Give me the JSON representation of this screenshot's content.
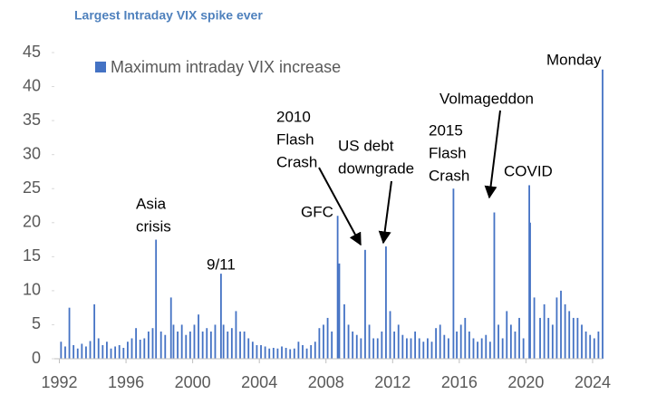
{
  "chart_data": {
    "type": "bar",
    "title": "Largest Intraday VIX spike ever",
    "series": [
      {
        "name": "Maximum intraday VIX increase",
        "color": "#4472c4",
        "values": [
          2.5,
          1.8,
          7.5,
          2,
          1.5,
          2.2,
          1.8,
          2.6,
          8,
          3,
          2,
          2.5,
          1.5,
          1.8,
          2,
          1.6,
          2.5,
          3,
          4.5,
          2.8,
          3,
          4,
          4.5,
          17.5,
          4,
          3.5,
          9,
          5,
          4,
          5,
          3.5,
          4,
          5,
          6.5,
          4,
          4.5,
          4,
          5,
          12.5,
          5,
          4,
          4.5,
          7,
          4,
          4,
          3,
          2.5,
          2,
          2,
          1.8,
          1.5,
          1.6,
          1.5,
          1.8,
          1.6,
          1.4,
          1.5,
          2.5,
          2,
          1.5,
          2,
          2.5,
          4.5,
          5,
          6,
          4,
          21,
          14,
          8,
          5,
          4,
          3.5,
          3,
          16,
          5,
          3,
          3,
          4,
          16.5,
          7,
          4,
          5,
          3.5,
          3,
          3,
          4,
          3,
          2.5,
          3,
          2.5,
          4.5,
          5,
          3.5,
          3,
          25,
          4,
          5,
          6,
          4,
          3,
          2.5,
          3,
          3.5,
          2.5,
          21.5,
          5,
          3,
          7,
          5,
          4,
          6,
          3,
          25.5,
          20,
          9,
          6,
          8,
          6,
          5,
          9,
          10,
          8,
          7,
          6,
          6,
          5,
          4,
          3.5,
          3,
          4,
          42.5
        ]
      }
    ],
    "x": [
      1992.1,
      1992.35,
      1992.6,
      1992.85,
      1993.1,
      1993.35,
      1993.6,
      1993.85,
      1994.1,
      1994.35,
      1994.6,
      1994.85,
      1995.1,
      1995.35,
      1995.6,
      1995.85,
      1996.1,
      1996.35,
      1996.6,
      1996.85,
      1997.1,
      1997.35,
      1997.6,
      1997.8,
      1998.1,
      1998.35,
      1998.7,
      1998.85,
      1999.1,
      1999.35,
      1999.6,
      1999.85,
      2000.1,
      2000.35,
      2000.6,
      2000.85,
      2001.1,
      2001.35,
      2001.7,
      2001.85,
      2002.1,
      2002.35,
      2002.6,
      2002.85,
      2003.1,
      2003.35,
      2003.6,
      2003.85,
      2004.1,
      2004.35,
      2004.6,
      2004.85,
      2005.1,
      2005.35,
      2005.6,
      2005.85,
      2006.1,
      2006.35,
      2006.6,
      2006.85,
      2007.1,
      2007.35,
      2007.6,
      2007.85,
      2008.1,
      2008.35,
      2008.7,
      2008.8,
      2009.1,
      2009.35,
      2009.6,
      2009.85,
      2010.1,
      2010.35,
      2010.6,
      2010.85,
      2011.1,
      2011.35,
      2011.6,
      2011.85,
      2012.1,
      2012.35,
      2012.6,
      2012.85,
      2013.1,
      2013.35,
      2013.6,
      2013.85,
      2014.1,
      2014.35,
      2014.6,
      2014.85,
      2015.1,
      2015.35,
      2015.65,
      2015.85,
      2016.1,
      2016.35,
      2016.6,
      2016.85,
      2017.1,
      2017.35,
      2017.6,
      2017.85,
      2018.1,
      2018.35,
      2018.6,
      2018.85,
      2019.1,
      2019.35,
      2019.6,
      2019.85,
      2020.2,
      2020.25,
      2020.5,
      2020.85,
      2021.1,
      2021.35,
      2021.6,
      2021.85,
      2022.1,
      2022.35,
      2022.6,
      2022.85,
      2023.1,
      2023.35,
      2023.6,
      2023.85,
      2024.1,
      2024.35,
      2024.6
    ],
    "xlim": [
      1991.7,
      2024.6
    ],
    "xticks": [
      1992,
      1996,
      2000,
      2004,
      2008,
      2012,
      2016,
      2020,
      2024
    ],
    "ylim": [
      0,
      45
    ],
    "yticks": [
      0,
      5,
      10,
      15,
      20,
      25,
      30,
      35,
      40,
      45
    ],
    "annotations": [
      [
        "Asia",
        "crisis"
      ],
      [
        "9/11"
      ],
      [
        "GFC"
      ],
      [
        "2010",
        "Flash",
        "Crash"
      ],
      [
        "US debt",
        "downgrade"
      ],
      [
        "2015",
        "Flash",
        "Crash"
      ],
      [
        "Volmageddon"
      ],
      [
        "COVID"
      ],
      [
        "Monday"
      ]
    ]
  }
}
